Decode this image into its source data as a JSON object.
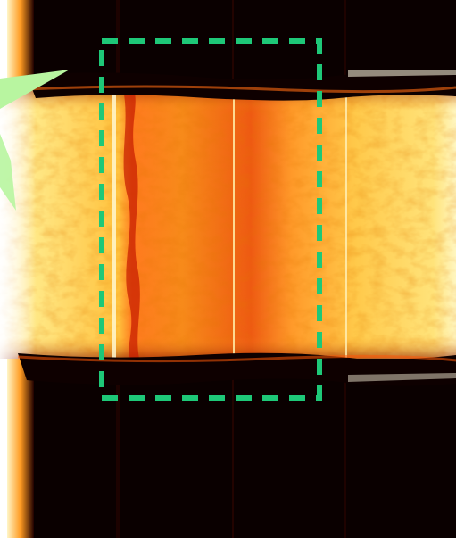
{
  "image": {
    "kind": "false-color scan",
    "colormap": [
      "#000000",
      "#3a0000",
      "#b81a00",
      "#ff6a1a",
      "#ffb03a",
      "#ffe26a",
      "#fffff0"
    ]
  },
  "highlight_region": {
    "style": "dashed rectangle",
    "color": "#1ec878"
  },
  "pointer": {
    "color": "#b8f5a0"
  }
}
